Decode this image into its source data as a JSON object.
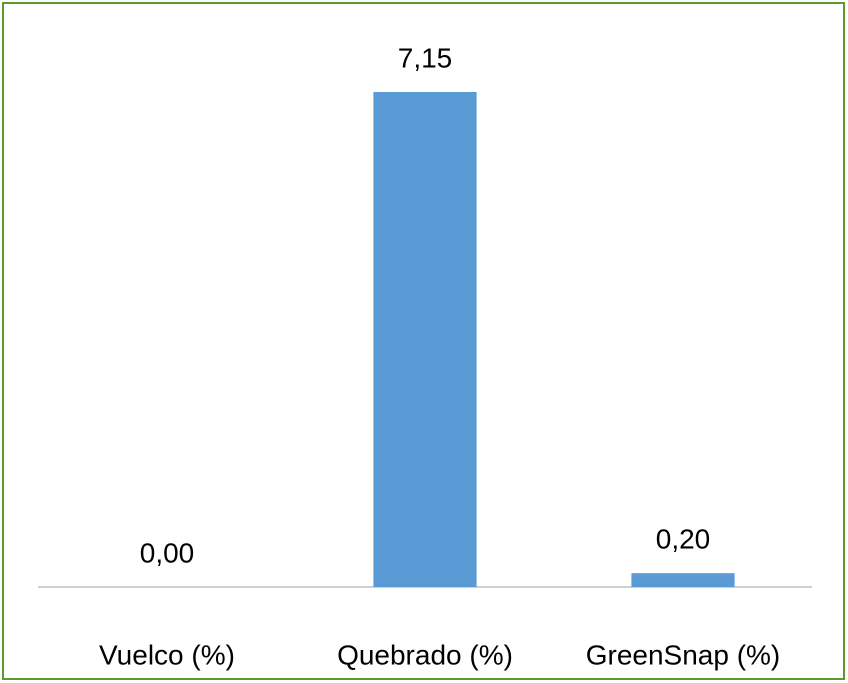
{
  "chart_data": {
    "type": "bar",
    "categories": [
      "Vuelco (%)",
      "Quebrado (%)",
      "GreenSnap (%)"
    ],
    "values": [
      0,
      7.15,
      0.2
    ],
    "value_labels": [
      "0,00",
      "7,15",
      "0,20"
    ],
    "color": "#5b9bd5"
  }
}
